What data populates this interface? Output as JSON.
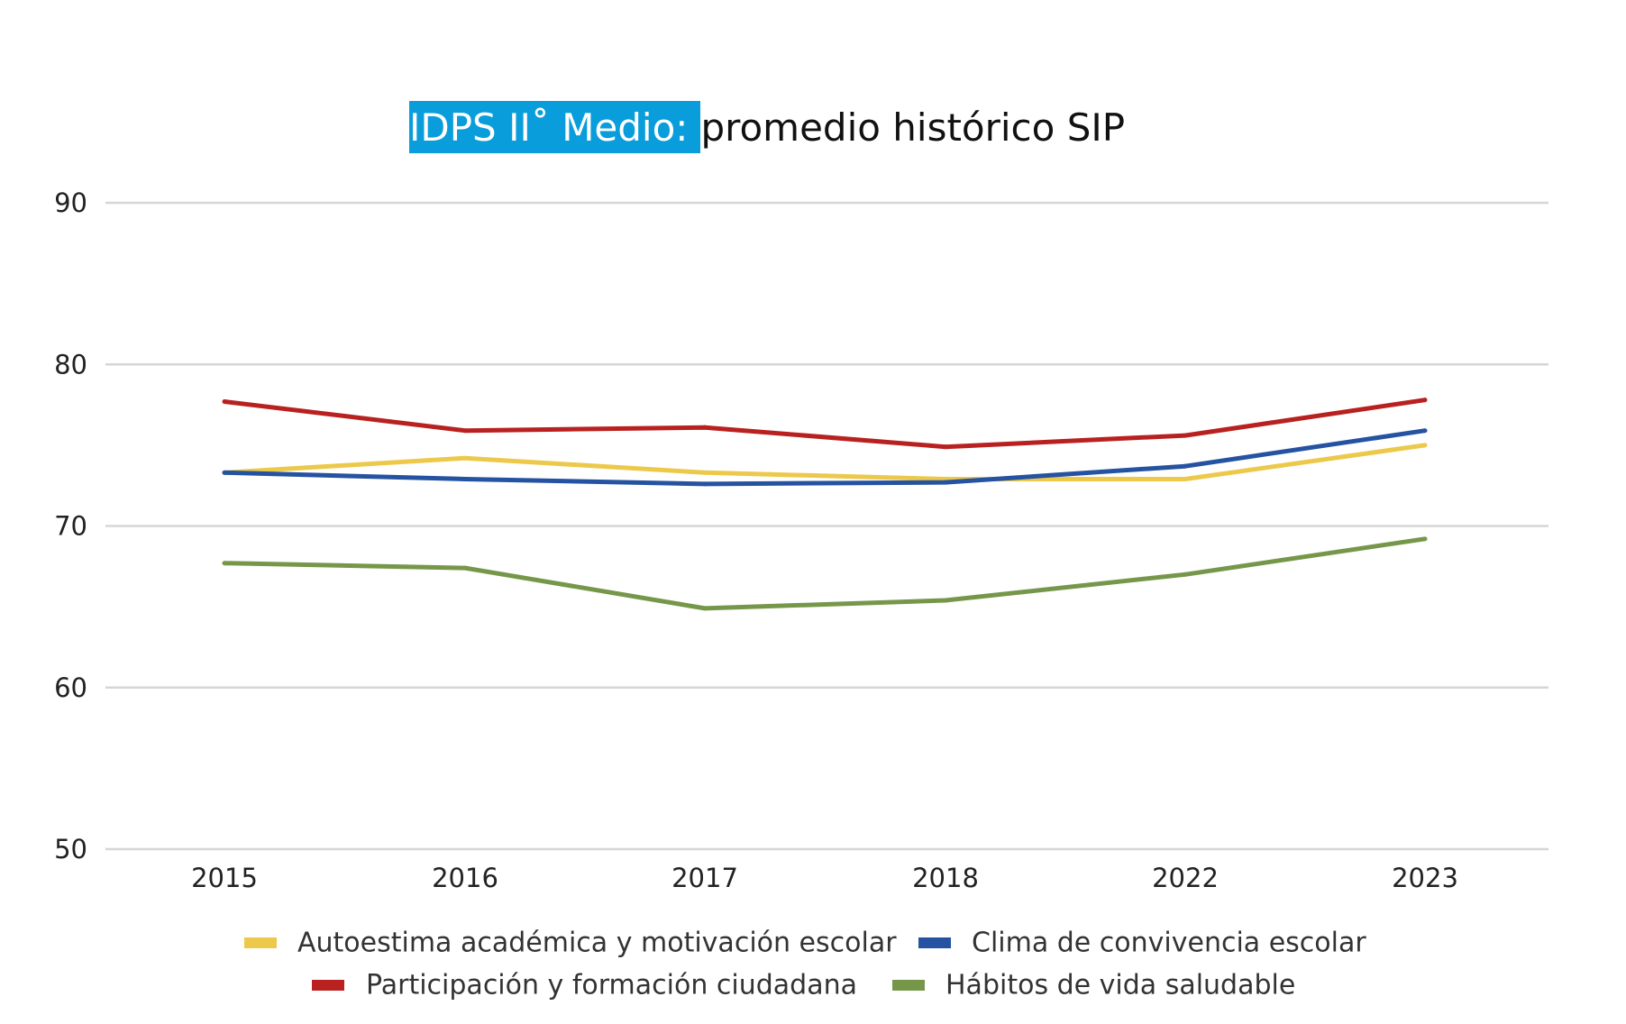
{
  "chart_data": {
    "type": "line",
    "title_highlight": "IDPS II˚ Medio: ",
    "title_rest": "promedio histórico SIP",
    "categories": [
      "2015",
      "2016",
      "2017",
      "2018",
      "2022",
      "2023"
    ],
    "y_ticks": [
      "90",
      "80",
      "70",
      "60",
      "50"
    ],
    "ylim": [
      50,
      90
    ],
    "grid": true,
    "legend_position": "bottom",
    "series": [
      {
        "name": "Autoestima académica y motivación escolar",
        "color": "#ecc94b",
        "values": [
          73.3,
          74.2,
          73.3,
          72.9,
          72.9,
          75.0
        ]
      },
      {
        "name": "Clima de convivencia escolar",
        "color": "#2553a1",
        "values": [
          73.3,
          72.9,
          72.6,
          72.7,
          73.7,
          75.9
        ]
      },
      {
        "name": "Participación y formación ciudadana",
        "color": "#b8211f",
        "values": [
          77.7,
          75.9,
          76.1,
          74.9,
          75.6,
          77.8
        ]
      },
      {
        "name": "Hábitos de vida saludable",
        "color": "#76974a",
        "values": [
          67.7,
          67.4,
          64.9,
          65.4,
          67.0,
          69.2
        ]
      }
    ]
  }
}
